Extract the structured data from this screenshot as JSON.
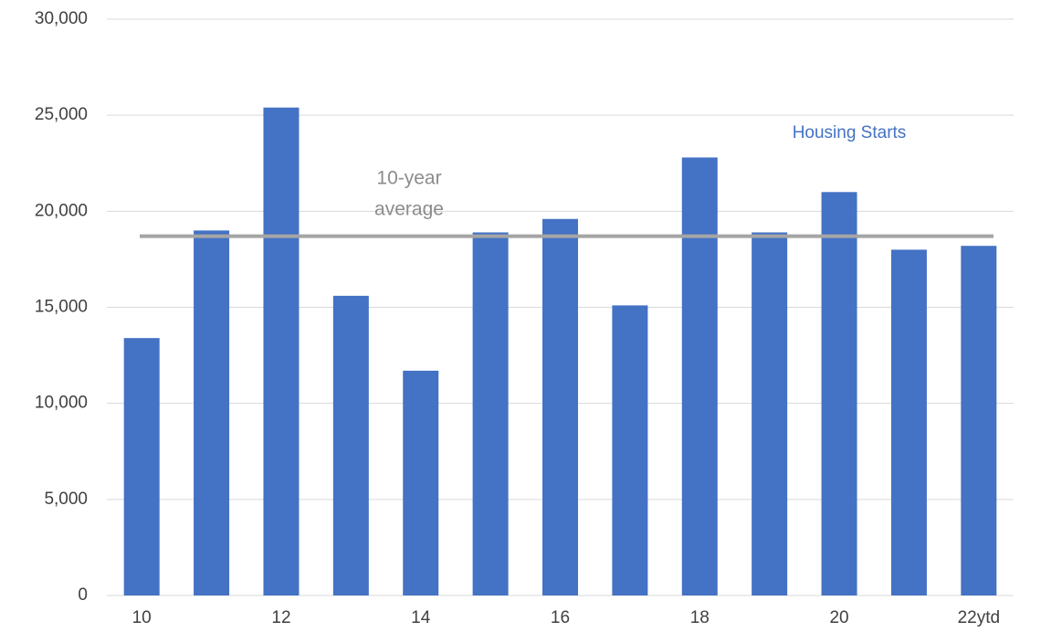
{
  "chart_data": {
    "type": "bar",
    "categories": [
      "10",
      null,
      "12",
      null,
      "14",
      null,
      "16",
      null,
      "18",
      null,
      "20",
      null,
      "22ytd"
    ],
    "series": [
      {
        "name": "Housing Starts",
        "color": "#4472c4",
        "values": [
          13400,
          19000,
          25400,
          15600,
          11700,
          18900,
          19600,
          15100,
          22800,
          18900,
          21000,
          18000,
          18200
        ]
      }
    ],
    "reference_line": {
      "value": 18700,
      "label": [
        "10-year",
        "average"
      ],
      "color": "#a5a5a5"
    },
    "ylim": [
      0,
      30000
    ],
    "yticks": [
      0,
      {
        "value": 5000,
        "label": "5,000"
      },
      {
        "value": 10000,
        "label": "10,000"
      },
      {
        "value": 15000,
        "label": "15,000"
      },
      {
        "value": 20000,
        "label": "20,000"
      },
      {
        "value": 25000,
        "label": "25,000"
      },
      {
        "value": 30000,
        "label": "30,000"
      }
    ],
    "grid": true
  }
}
